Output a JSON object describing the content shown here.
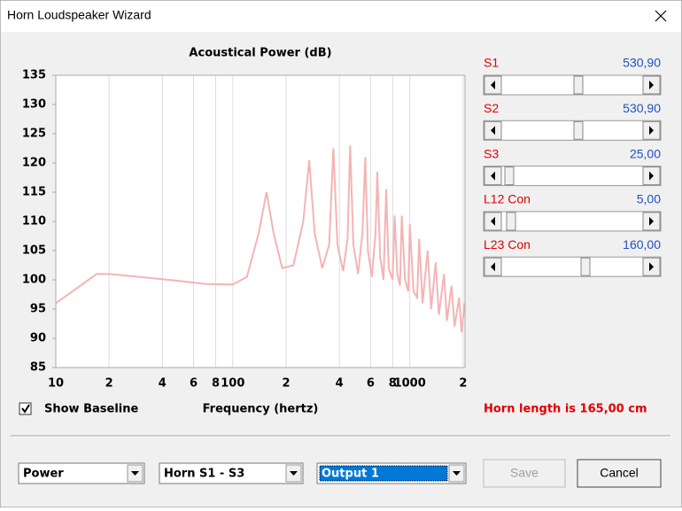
{
  "window": {
    "title": "Horn Loudspeaker Wizard"
  },
  "chart_data": {
    "type": "line",
    "title": "Acoustical Power (dB)",
    "x_label": "Frequency (hertz)",
    "log_x": true,
    "grid": "x",
    "color": "#f4b4b4",
    "x": [
      10,
      17,
      20,
      30,
      50,
      70,
      100,
      120,
      140,
      155,
      170,
      190,
      220,
      250,
      270,
      290,
      320,
      350,
      370,
      390,
      420,
      445,
      460,
      480,
      510,
      540,
      560,
      580,
      610,
      640,
      655,
      680,
      710,
      735,
      760,
      800,
      820,
      850,
      880,
      900,
      940,
      980,
      1000,
      1050,
      1100,
      1130,
      1180,
      1260,
      1320,
      1400,
      1460,
      1560,
      1620,
      1720,
      1790,
      1900,
      1960,
      2040
    ],
    "values": [
      96,
      101,
      101,
      100.5,
      99.8,
      99.3,
      99.2,
      100.5,
      108,
      115,
      108,
      102,
      102.5,
      110,
      120.5,
      108,
      102,
      106,
      122.5,
      106,
      101.5,
      107,
      123,
      106,
      101,
      108,
      121,
      105,
      100.5,
      108,
      118.5,
      104,
      100,
      115.5,
      102,
      100,
      111,
      101,
      99,
      111,
      100,
      98,
      109.5,
      98,
      97,
      107,
      96,
      105,
      95,
      103,
      94,
      101,
      93,
      99,
      92,
      97,
      91,
      96
    ],
    "xlim": [
      10,
      2050
    ],
    "ylim": [
      85,
      135
    ],
    "xticks": [
      10,
      {
        "value": 20,
        "label": "2"
      },
      {
        "value": 40,
        "label": "4"
      },
      {
        "value": 60,
        "label": "6"
      },
      {
        "value": 80,
        "label": "8"
      },
      100,
      {
        "value": 200,
        "label": "2"
      },
      {
        "value": 400,
        "label": "4"
      },
      {
        "value": 600,
        "label": "6"
      },
      {
        "value": 800,
        "label": "8"
      },
      1000,
      {
        "value": 2000,
        "label": "2"
      }
    ],
    "yticks": [
      85,
      90,
      95,
      100,
      105,
      110,
      115,
      120,
      125,
      130,
      135
    ]
  },
  "sliders": [
    {
      "label": "S1",
      "value": "530,90"
    },
    {
      "label": "S2",
      "value": "530,90"
    },
    {
      "label": "S3",
      "value": "25,00"
    },
    {
      "label": "L12  Con",
      "value": "5,00"
    },
    {
      "label": "L23  Con",
      "value": "160,00"
    }
  ],
  "show_baseline": {
    "label": "Show Baseline",
    "checked": true
  },
  "horn_length": "Horn length is 165,00 cm",
  "dropdowns": [
    "Power",
    "Horn S1 - S3",
    "Output 1"
  ],
  "buttons": {
    "save": "Save",
    "cancel": "Cancel"
  }
}
